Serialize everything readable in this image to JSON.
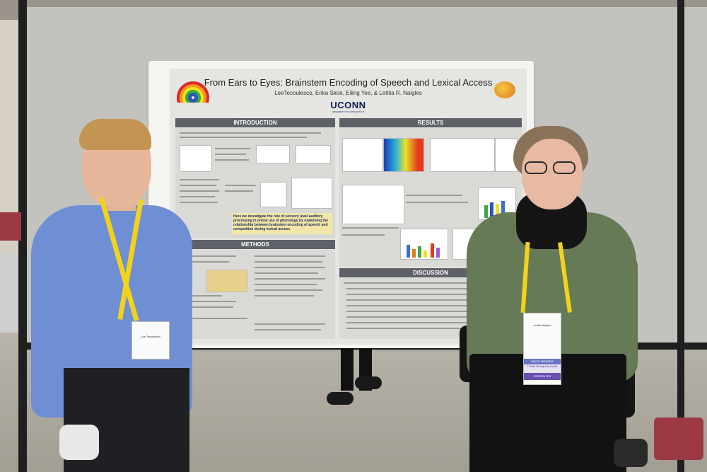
{
  "poster": {
    "title": "From Ears to Eyes: Brainstem Encoding of Speech and Lexical Access",
    "authors": "LeeTecoulesco, Erika Skoe, Eiling Yee, & Letitia R. Naigles",
    "institution": "UCONN",
    "institution_sub": "UNIVERSITY OF CONNECTICUT",
    "sections": {
      "introduction": "INTRODUCTION",
      "methods": "METHODS",
      "results": "RESULTS",
      "discussion": "DISCUSSION"
    },
    "highlight_text": "Here we investigate the role of sensory level auditory processing in online use of phonology by examining the relationship between brainstem encoding of speech and competition during lexical access"
  },
  "badges": {
    "left_name": "Lee Tecoulesco",
    "right_name": "Letitia Naigles",
    "right_ribbon_1": "NRCSI MEMBER",
    "right_ribbon_2": "I Chair During the Limits",
    "right_ribbon_3": "PRESENTER"
  },
  "colors": {
    "section_header": "#5e6168",
    "poster_background": "#e5e5e2",
    "lanyard": "#f2d21c",
    "uconn_navy": "#0b1d4f"
  }
}
